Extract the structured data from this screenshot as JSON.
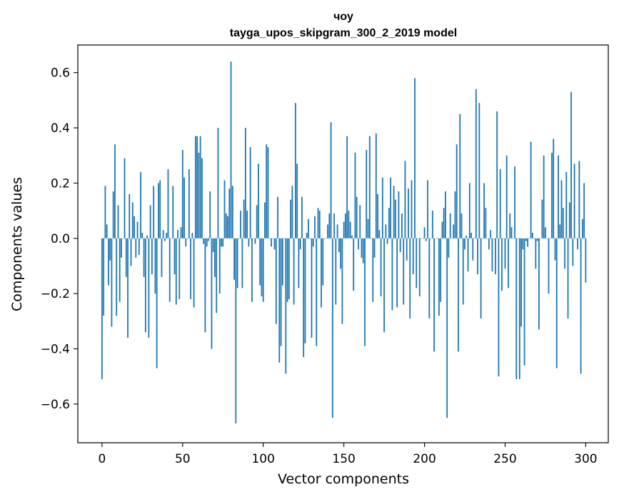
{
  "chart_data": {
    "type": "bar",
    "title": "чоу",
    "subtitle": "tayga_upos_skipgram_300_2_2019 model",
    "xlabel": "Vector components",
    "ylabel": "Components values",
    "xlim": [
      -15,
      314
    ],
    "ylim": [
      -0.74,
      0.7
    ],
    "xticks": [
      0,
      50,
      100,
      150,
      200,
      250,
      300
    ],
    "xtick_labels": [
      "0",
      "50",
      "100",
      "150",
      "200",
      "250",
      "300"
    ],
    "yticks": [
      -0.6,
      -0.4,
      -0.2,
      0.0,
      0.2,
      0.4,
      0.6
    ],
    "ytick_labels": [
      "−0.6",
      "−0.4",
      "−0.2",
      "0.0",
      "0.2",
      "0.4",
      "0.6"
    ],
    "grid": false,
    "bar_color": "#1f77b4",
    "values": [
      -0.51,
      -0.28,
      0.19,
      0.05,
      -0.17,
      -0.08,
      -0.32,
      0.17,
      0.34,
      -0.28,
      0.12,
      -0.23,
      -0.07,
      0.0,
      0.29,
      -0.14,
      -0.36,
      0.16,
      -0.1,
      0.13,
      0.08,
      -0.07,
      0.06,
      -0.06,
      0.24,
      0.02,
      -0.14,
      -0.34,
      0.01,
      -0.36,
      0.12,
      -0.13,
      0.19,
      -0.2,
      -0.47,
      0.2,
      0.21,
      -0.14,
      0.03,
      -0.01,
      0.02,
      0.25,
      -0.23,
      0.0,
      0.19,
      -0.13,
      -0.24,
      0.03,
      -0.22,
      0.04,
      0.32,
      0.22,
      -0.03,
      0.0,
      0.25,
      -0.22,
      0.02,
      -0.25,
      0.37,
      0.37,
      0.31,
      0.37,
      0.29,
      -0.02,
      -0.34,
      -0.03,
      -0.01,
      0.17,
      -0.4,
      -0.05,
      -0.14,
      -0.27,
      0.4,
      -0.2,
      -0.03,
      -0.03,
      0.21,
      0.09,
      0.08,
      0.18,
      0.64,
      0.19,
      -0.15,
      -0.67,
      -0.18,
      0.0,
      0.1,
      -0.18,
      0.14,
      0.4,
      0.1,
      -0.03,
      0.33,
      -0.23,
      0.0,
      -0.02,
      0.12,
      0.27,
      -0.17,
      -0.21,
      -0.23,
      0.13,
      0.34,
      0.33,
      0.0,
      -0.03,
      0.0,
      -0.04,
      -0.31,
      0.15,
      -0.45,
      -0.39,
      -0.17,
      0.0,
      -0.49,
      -0.23,
      -0.22,
      0.14,
      0.19,
      -0.24,
      0.49,
      0.27,
      -0.18,
      -0.04,
      0.15,
      -0.43,
      -0.38,
      0.02,
      0.07,
      0.0,
      -0.36,
      -0.03,
      0.08,
      -0.39,
      0.11,
      0.1,
      -0.25,
      -0.17,
      0.0,
      0.0,
      0.05,
      0.09,
      0.42,
      -0.65,
      0.09,
      -0.24,
      0.05,
      -0.05,
      -0.11,
      -0.31,
      0.06,
      0.09,
      0.37,
      0.1,
      0.06,
      0.01,
      -0.19,
      0.31,
      0.15,
      -0.04,
      0.12,
      -0.07,
      -0.09,
      -0.39,
      0.32,
      0.07,
      0.37,
      0.0,
      -0.23,
      -0.07,
      0.38,
      0.16,
      0.03,
      -0.21,
      0.22,
      -0.34,
      0.05,
      -0.02,
      0.11,
      0.22,
      -0.26,
      0.19,
      0.14,
      -0.25,
      0.17,
      -0.05,
      0.09,
      -0.24,
      0.28,
      -0.08,
      0.18,
      -0.29,
      0.21,
      -0.13,
      0.58,
      -0.18,
      0.0,
      -0.21,
      0.0,
      0.0,
      0.04,
      -0.01,
      0.21,
      -0.29,
      0.0,
      0.1,
      -0.41,
      0.0,
      0.0,
      -0.28,
      -0.23,
      0.06,
      0.11,
      0.17,
      -0.65,
      -0.07,
      0.09,
      0.0,
      0.05,
      0.17,
      0.34,
      -0.41,
      0.45,
      0.09,
      -0.24,
      -0.04,
      0.01,
      -0.12,
      0.2,
      0.02,
      -0.08,
      0.0,
      0.54,
      -0.13,
      0.49,
      -0.29,
      0.0,
      0.2,
      0.11,
      0.0,
      -0.04,
      0.03,
      -0.12,
      0.0,
      -0.13,
      0.46,
      -0.5,
      0.25,
      -0.19,
      0.0,
      -0.11,
      0.3,
      -0.18,
      0.09,
      0.04,
      0.0,
      0.26,
      -0.51,
      0.0,
      -0.51,
      -0.32,
      -0.04,
      -0.46,
      -0.01,
      -0.03,
      0.0,
      0.35,
      0.02,
      0.0,
      -0.11,
      -0.01,
      -0.33,
      0.0,
      0.14,
      0.3,
      0.04,
      0.0,
      -0.2,
      0.0,
      0.31,
      0.36,
      -0.08,
      -0.47,
      0.3,
      0.05,
      0.21,
      0.11,
      -0.11,
      0.24,
      -0.29,
      0.13,
      0.53,
      -0.1,
      0.27,
      0.0,
      -0.04,
      0.28,
      -0.49,
      0.07,
      0.2,
      -0.16
    ]
  }
}
